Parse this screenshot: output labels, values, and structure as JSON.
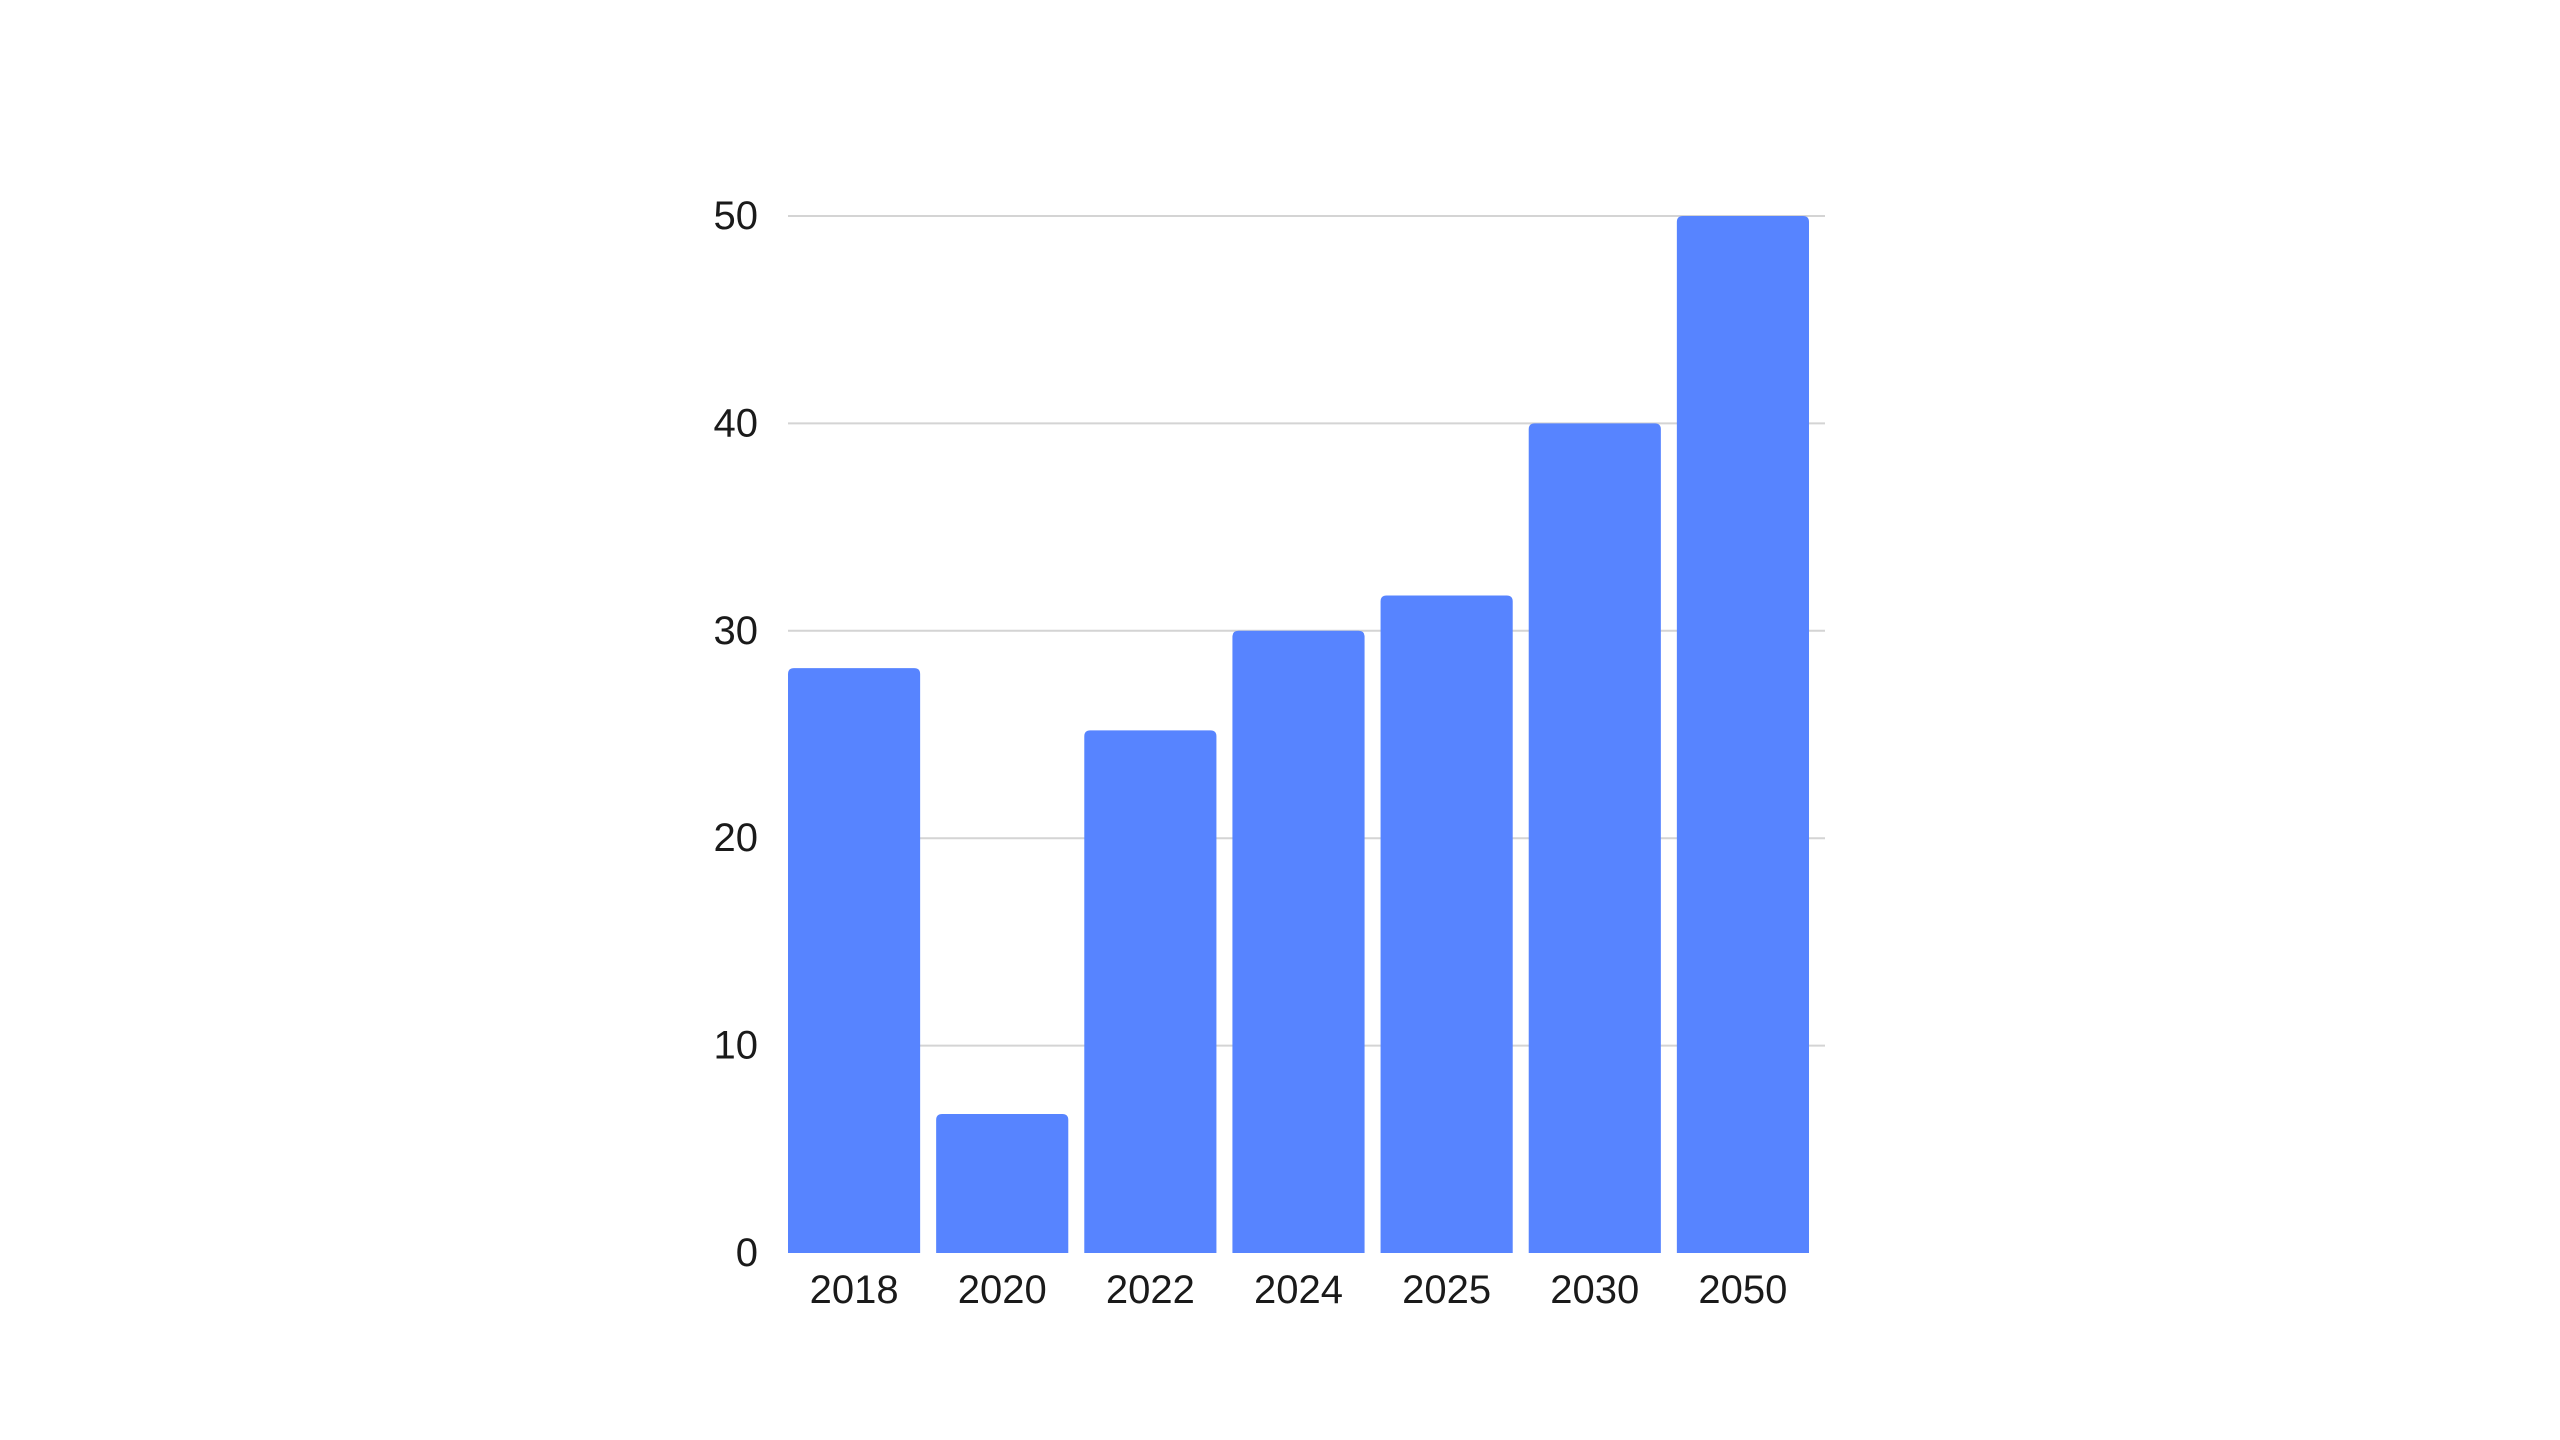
{
  "chart_data": {
    "type": "bar",
    "categories": [
      "2018",
      "2020",
      "2022",
      "2024",
      "2025",
      "2030",
      "2050"
    ],
    "values": [
      28.2,
      6.7,
      25.2,
      30.0,
      31.7,
      40.0,
      50.0
    ],
    "title": "",
    "xlabel": "",
    "ylabel": "",
    "ylim": [
      0,
      50
    ],
    "yticks": [
      "0",
      "10",
      "20",
      "30",
      "40",
      "50"
    ],
    "grid": true,
    "legend": "none",
    "bar_color": "#5784FF"
  }
}
